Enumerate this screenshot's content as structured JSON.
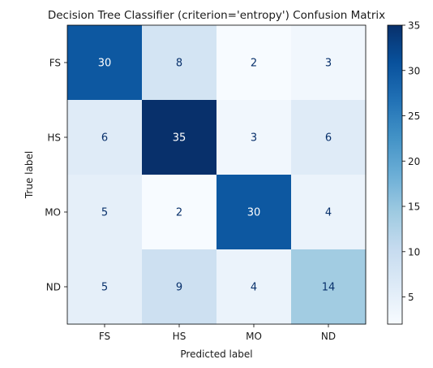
{
  "chart_data": {
    "type": "heatmap",
    "title": "Decision Tree Classifier (criterion='entropy') Confusion Matrix",
    "xlabel": "Predicted label",
    "ylabel": "True label",
    "x_categories": [
      "FS",
      "HS",
      "MO",
      "ND"
    ],
    "y_categories": [
      "FS",
      "HS",
      "MO",
      "ND"
    ],
    "matrix": [
      [
        30,
        8,
        2,
        3
      ],
      [
        6,
        35,
        3,
        6
      ],
      [
        5,
        2,
        30,
        4
      ],
      [
        5,
        9,
        4,
        14
      ]
    ],
    "colormap": "Blues",
    "colorbar": {
      "min": 2,
      "max": 35,
      "ticks": [
        5,
        10,
        15,
        20,
        25,
        30,
        35
      ]
    },
    "text_color_light": "#ffffff",
    "text_color_dark": "#08306b"
  }
}
